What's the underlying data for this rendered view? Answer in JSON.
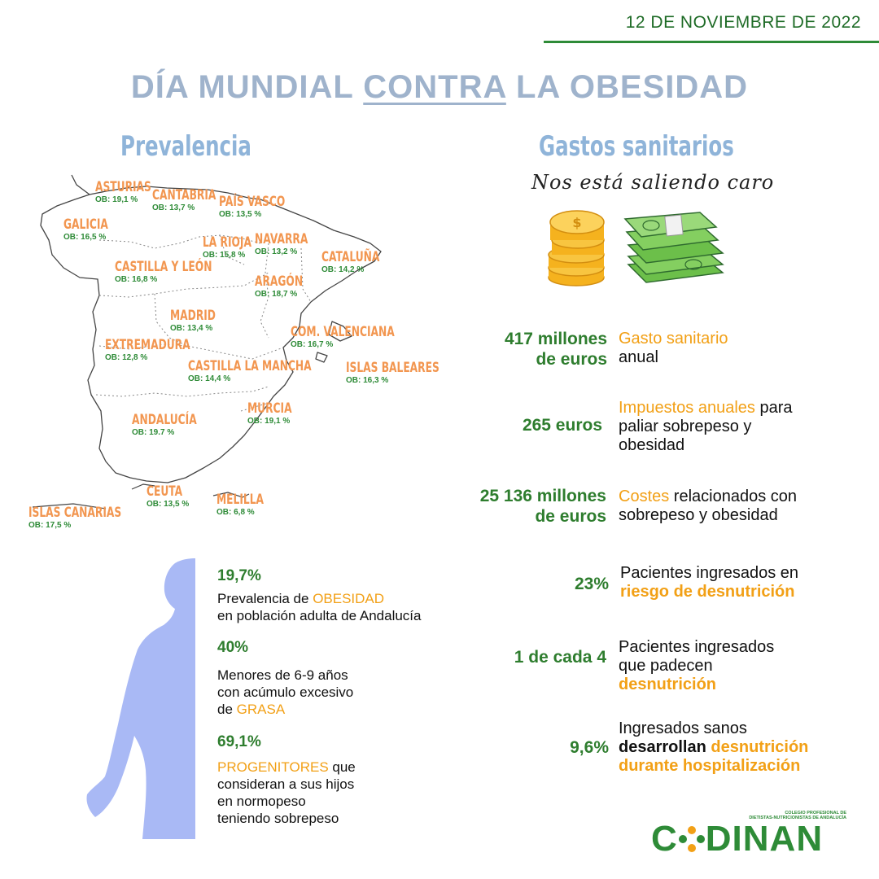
{
  "date": "12 DE NOVIEMBRE DE 2022",
  "title": {
    "part1": "DÍA MUNDIAL ",
    "part2": "CONTRA",
    "part3": " LA OBESIDAD"
  },
  "prevalencia": {
    "title": "Prevalencia",
    "regions": [
      {
        "name": "ASTURIAS",
        "ob": "OB: 19,1 %"
      },
      {
        "name": "CANTABRIA",
        "ob": "OB: 13,7 %"
      },
      {
        "name": "PAÍS VASCO",
        "ob": "OB: 13,5 %"
      },
      {
        "name": "GALICIA",
        "ob": "OB: 16,5 %"
      },
      {
        "name": "LA RIOJA",
        "ob": "OB: 15,8 %"
      },
      {
        "name": "NAVARRA",
        "ob": "OB: 13,2 %"
      },
      {
        "name": "CASTILLA Y LEÓN",
        "ob": "OB: 16,8 %"
      },
      {
        "name": "CATALUÑA",
        "ob": "OB: 14,2 %"
      },
      {
        "name": "ARAGÓN",
        "ob": "OB: 18,7 %"
      },
      {
        "name": "MADRID",
        "ob": "OB: 13,4 %"
      },
      {
        "name": "COM. VALENCIANA",
        "ob": "OB: 16,7 %"
      },
      {
        "name": "EXTREMADURA",
        "ob": "OB: 12,8 %"
      },
      {
        "name": "ISLAS BALEARES",
        "ob": "OB: 16,3 %"
      },
      {
        "name": "CASTILLA LA MANCHA",
        "ob": "OB: 14,4 %"
      },
      {
        "name": "MURCIA",
        "ob": "OB: 19,1 %"
      },
      {
        "name": "ANDALUCÍA",
        "ob": "OB: 19.7 %"
      },
      {
        "name": "CEUTA",
        "ob": "OB: 13,5 %"
      },
      {
        "name": "MELILLA",
        "ob": "OB: 6,8 %"
      },
      {
        "name": "ISLAS CANARIAS",
        "ob": "OB: 17,5 %"
      }
    ]
  },
  "gastos": {
    "title": "Gastos sanitarios",
    "subtitle": "Nos está saliendo caro",
    "items": [
      {
        "value_l1": "417 millones",
        "value_l2": "de euros",
        "d1_orange": "Gasto sanitario",
        "d2": "anual"
      },
      {
        "value": "265 euros",
        "d1_orange": "Impuestos anuales",
        "d1_rest": " para",
        "d2": "paliar sobrepeso y",
        "d3": "obesidad"
      },
      {
        "value_l1": "25 136 millones",
        "value_l2": "de euros",
        "d1_orange": "Costes",
        "d1_rest": " relacionados con",
        "d2": "sobrepeso y obesidad"
      }
    ]
  },
  "malnutricion": [
    {
      "value": "23%",
      "d1": "Pacientes ingresados en",
      "d2_orange": "riesgo de desnutrición"
    },
    {
      "value": "1 de cada 4",
      "d1": "Pacientes ingresados",
      "d2": "que padecen",
      "d3_orange": "desnutrición"
    },
    {
      "value": "9,6%",
      "d1": "Ingresados sanos",
      "d2_dark": "desarrollan",
      "d2_orange": " desnutrición",
      "d3_orange": "durante hospitalización"
    }
  ],
  "andalucia": [
    {
      "value": "19,7%",
      "d1_pre": "Prevalencia de ",
      "d1_orange": "OBESIDAD",
      "d2": "en población adulta de Andalucía"
    },
    {
      "value": "40%",
      "d1": "Menores de 6-9 años",
      "d2": "con acúmulo excesivo",
      "d3_pre": "de ",
      "d3_orange": "GRASA"
    },
    {
      "value": "69,1%",
      "d1_orange": "PROGENITORES",
      "d1_rest": " que",
      "d2": "consideran a sus hijos",
      "d3": "en normopeso",
      "d4": "teniendo sobrepeso"
    }
  ],
  "logo": {
    "text_c": "C",
    "text_rest": "DINAN",
    "line1": "COLEGIO PROFESIONAL DE",
    "line2": "DIETISTAS-NUTRICIONISTAS DE ANDALUCÍA"
  },
  "colors": {
    "green": "#2e7d2e",
    "orange": "#f2a016",
    "region_orange": "#f29650",
    "title_blue": "#9fb3cc",
    "silhouette": "#a9b9f5"
  },
  "icons": [
    "coins-icon",
    "banknotes-icon",
    "human-silhouette-icon",
    "spain-map-icon"
  ]
}
